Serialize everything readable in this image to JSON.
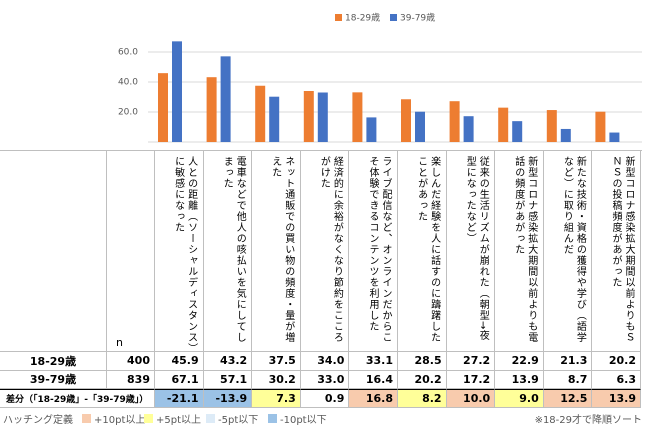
{
  "chart_data": {
    "type": "bar",
    "categories": [
      "人との距離（ソーシャルディスタンス）に敏感になった",
      "電車などで他人の咳払いを気にしてしまった",
      "ネット通販での買い物の頻度・量が増えた",
      "経済的に余裕がなくなり節約をこころがけた",
      "ライブ配信など、オンラインだからこそ体験できるコンテンツを利用した",
      "楽しんだ経験を人に話すのに躊躇したことがあった",
      "従来の生活リズムが崩れた（朝型→夜型になったなど）",
      "新型コロナ感染拡大期間以前よりも電話の頻度があがった",
      "新たな技術・資格の獲得や学び（語学など）に取り組んだ",
      "新型コロナ感染拡大期間以前よりもＳＮＳの投稿頻度があがった"
    ],
    "series": [
      {
        "name": "18-29歳",
        "color": "#ed7d31",
        "n": 400,
        "values": [
          45.9,
          43.2,
          37.5,
          34.0,
          33.1,
          28.5,
          27.2,
          22.9,
          21.3,
          20.2
        ],
        "value_labels": [
          "45.9",
          "43.2",
          "37.5",
          "34.0",
          "33.1",
          "28.5",
          "27.2",
          "22.9",
          "21.3",
          "20.2"
        ]
      },
      {
        "name": "39-79歳",
        "color": "#4472c4",
        "n": 839,
        "values": [
          67.1,
          57.1,
          30.2,
          33.0,
          16.4,
          20.2,
          17.2,
          13.9,
          8.7,
          6.3
        ],
        "value_labels": [
          "67.1",
          "57.1",
          "30.2",
          "33.0",
          "16.4",
          "20.2",
          "17.2",
          "13.9",
          "8.7",
          "6.3"
        ]
      }
    ],
    "ylim": [
      0,
      70
    ],
    "yticks": [
      {
        "value": 20,
        "label": "20.0"
      },
      {
        "value": 40,
        "label": "40.0"
      },
      {
        "value": 60,
        "label": "60.0"
      }
    ],
    "grid": true,
    "legend": "top",
    "n_label": "n",
    "diff": {
      "label": "差分（「18-29歳」-「39-79歳」）",
      "values": [
        -21.1,
        -13.9,
        7.3,
        0.9,
        16.8,
        8.2,
        10.0,
        9.0,
        12.5,
        13.9
      ],
      "value_labels": [
        "-21.1",
        "-13.9",
        "7.3",
        "0.9",
        "16.8",
        "8.2",
        "10.0",
        "9.0",
        "12.5",
        "13.9"
      ],
      "highlight": [
        3,
        3,
        1,
        null,
        0,
        1,
        0,
        1,
        0,
        0
      ]
    },
    "hatching": {
      "label": "ハッチング定義",
      "items": [
        {
          "label": "+10pt以上",
          "color": "#f8cbad"
        },
        {
          "label": "+5pt以上",
          "color": "#ffff99"
        },
        {
          "label": "-5pt以下",
          "color": "#ddebf7"
        },
        {
          "label": "-10pt以下",
          "color": "#9bc2e6"
        }
      ]
    },
    "note": "※18-29才で降順ソート"
  }
}
